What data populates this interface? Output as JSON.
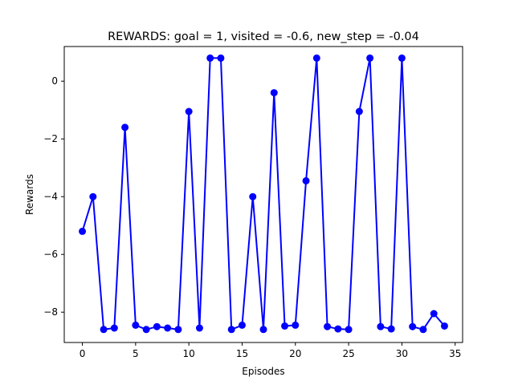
{
  "chart_data": {
    "type": "line",
    "title": "REWARDS: goal = 1, visited = -0.6, new_step = -0.04",
    "xlabel": "Episodes",
    "ylabel": "Rewards",
    "xlim": [
      -1.7,
      35.7
    ],
    "ylim": [
      -9.05,
      1.2
    ],
    "xticks": [
      0,
      5,
      10,
      15,
      20,
      25,
      30,
      35
    ],
    "yticks": [
      -8,
      -6,
      -4,
      -2,
      0
    ],
    "grid": false,
    "series": [
      {
        "color": "#0000ff",
        "marker": "circle",
        "x": [
          0,
          1,
          2,
          3,
          4,
          5,
          6,
          7,
          8,
          9,
          10,
          11,
          12,
          13,
          14,
          15,
          16,
          17,
          18,
          19,
          20,
          21,
          22,
          23,
          24,
          25,
          26,
          27,
          28,
          29,
          30,
          31,
          32,
          33,
          34
        ],
        "y": [
          -5.2,
          -4.0,
          -8.6,
          -8.55,
          -1.6,
          -8.45,
          -8.6,
          -8.5,
          -8.55,
          -8.6,
          -1.05,
          -8.55,
          0.8,
          0.8,
          -8.6,
          -8.45,
          -4.0,
          -8.6,
          -0.4,
          -8.48,
          -8.45,
          -3.45,
          0.8,
          -8.5,
          -8.58,
          -8.6,
          -1.05,
          0.8,
          -8.5,
          -8.58,
          0.8,
          -8.5,
          -8.6,
          -8.05,
          -8.48
        ]
      }
    ]
  }
}
